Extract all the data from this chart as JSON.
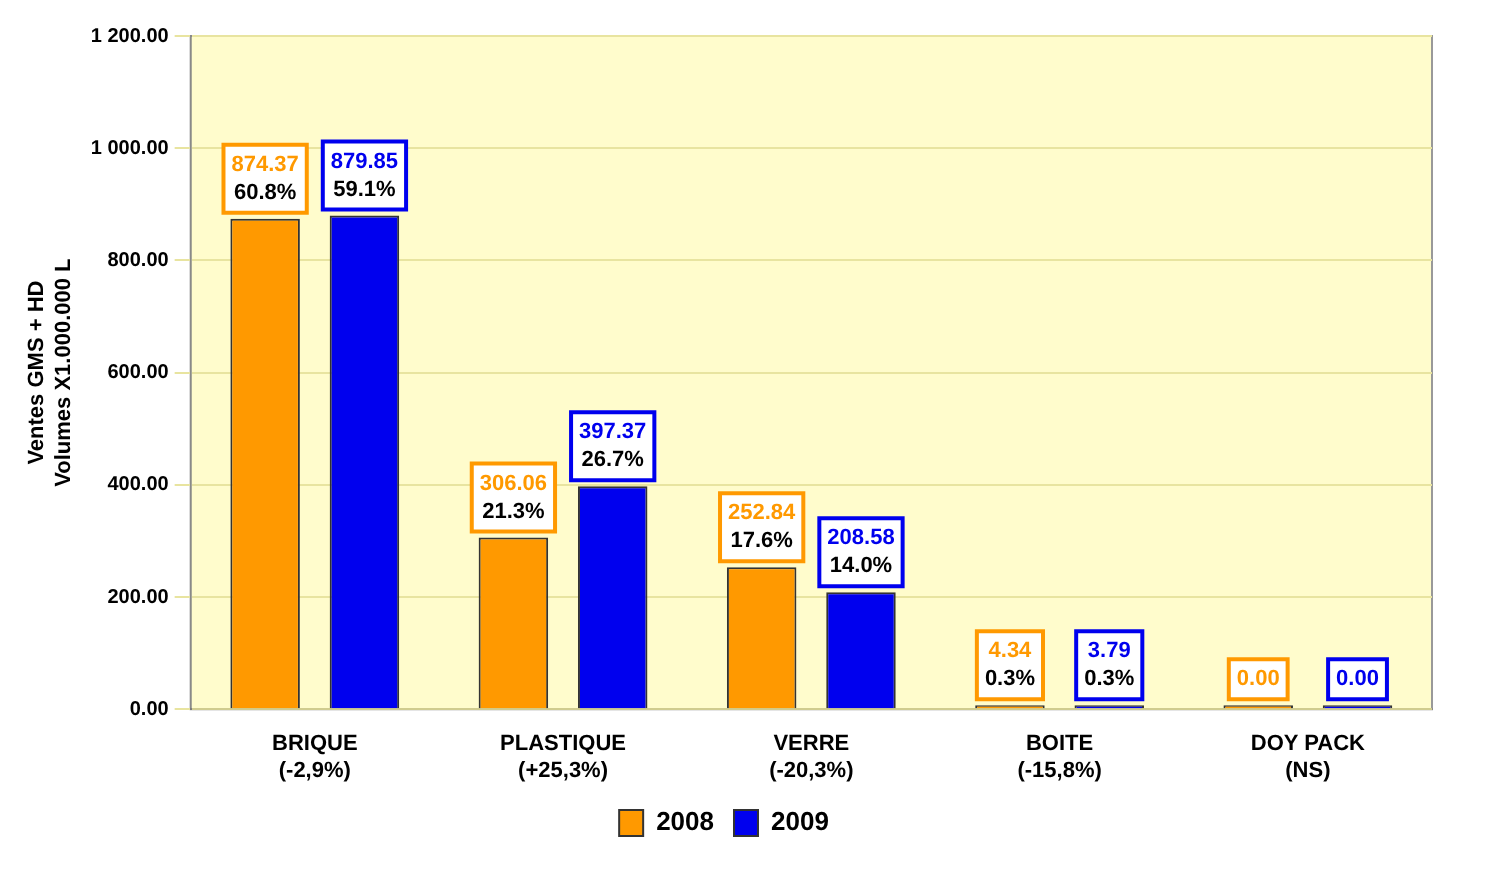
{
  "chart_data": {
    "type": "bar",
    "ylabel": "Ventes GMS + HD\nVolumes X1.000.000 L",
    "categories": [
      "BRIQUE\n(-2,9%)",
      "PLASTIQUE\n(+25,3%)",
      "VERRE\n(-20,3%)",
      "BOITE\n(-15,8%)",
      "DOY PACK\n(NS)"
    ],
    "series": [
      {
        "name": "2008",
        "color": "#ff9900",
        "values": [
          874.37,
          306.06,
          252.84,
          4.34,
          0
        ],
        "value_labels": [
          "874.37\n60.8%",
          "306.06\n21.3%",
          "252.84\n17.6%",
          "4.34\n0.3%",
          "0.00"
        ]
      },
      {
        "name": "2009",
        "color": "#0000ee",
        "values": [
          879.85,
          397.37,
          208.58,
          3.79,
          0
        ],
        "value_labels": [
          "879.85\n59.1%",
          "397.37\n26.7%",
          "208.58\n14.0%",
          "3.79\n0.3%",
          "0.00"
        ]
      }
    ],
    "ylim": [
      0,
      1200
    ],
    "yticks": [
      {
        "value": 0,
        "label": "0.00"
      },
      {
        "value": 200,
        "label": "200.00"
      },
      {
        "value": 400,
        "label": "400.00"
      },
      {
        "value": 600,
        "label": "600.00"
      },
      {
        "value": 800,
        "label": "800.00"
      },
      {
        "value": 1000,
        "label": "1 000.00"
      },
      {
        "value": 1200,
        "label": "1 200.00"
      }
    ],
    "grid": "y",
    "legend": "bottom"
  }
}
